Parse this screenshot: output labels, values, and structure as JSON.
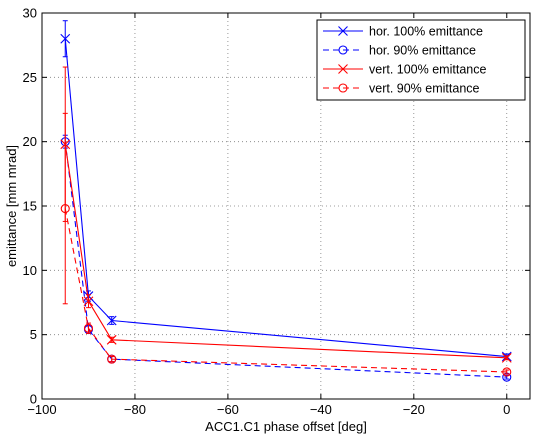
{
  "chart_data": {
    "type": "line",
    "xlabel": "ACC1.C1 phase offset [deg]",
    "ylabel": "emittance [mm mrad]",
    "xlim": [
      -100,
      5
    ],
    "ylim": [
      0,
      30
    ],
    "xticks": [
      -100,
      -80,
      -60,
      -40,
      -20,
      0
    ],
    "xtick_labels": [
      "−100",
      "−80",
      "−60",
      "−40",
      "−20",
      "0"
    ],
    "yticks": [
      0,
      5,
      10,
      15,
      20,
      25,
      30
    ],
    "ytick_labels": [
      "0",
      "5",
      "10",
      "15",
      "20",
      "25",
      "30"
    ],
    "grid": true,
    "legend_position": "top-right",
    "series": [
      {
        "name": "hor. 100% emittance",
        "color": "#0000ff",
        "line_style": "solid",
        "marker": "x",
        "x": [
          -95,
          -90,
          -85,
          0
        ],
        "y": [
          28.0,
          8.0,
          6.1,
          3.3
        ],
        "err": [
          1.4,
          0.4,
          0.3,
          0.2
        ]
      },
      {
        "name": "hor. 90% emittance",
        "color": "#0000ff",
        "line_style": "dashed",
        "marker": "o",
        "x": [
          -95,
          -90,
          -85,
          0
        ],
        "y": [
          20.0,
          5.4,
          3.1,
          1.7
        ],
        "err": [
          0.5,
          0.3,
          0.2,
          0.15
        ]
      },
      {
        "name": "vert. 100% emittance",
        "color": "#ff0000",
        "line_style": "solid",
        "marker": "x",
        "x": [
          -95,
          -90,
          -85,
          0
        ],
        "y": [
          19.8,
          7.6,
          4.6,
          3.2
        ],
        "err": [
          6.0,
          0.5,
          0.2,
          0.15
        ]
      },
      {
        "name": "vert. 90% emittance",
        "color": "#ff0000",
        "line_style": "dashed",
        "marker": "o",
        "x": [
          -95,
          -90,
          -85,
          0
        ],
        "y": [
          14.8,
          5.5,
          3.1,
          2.1
        ],
        "err": [
          7.4,
          0.4,
          0.2,
          0.15
        ]
      }
    ]
  }
}
